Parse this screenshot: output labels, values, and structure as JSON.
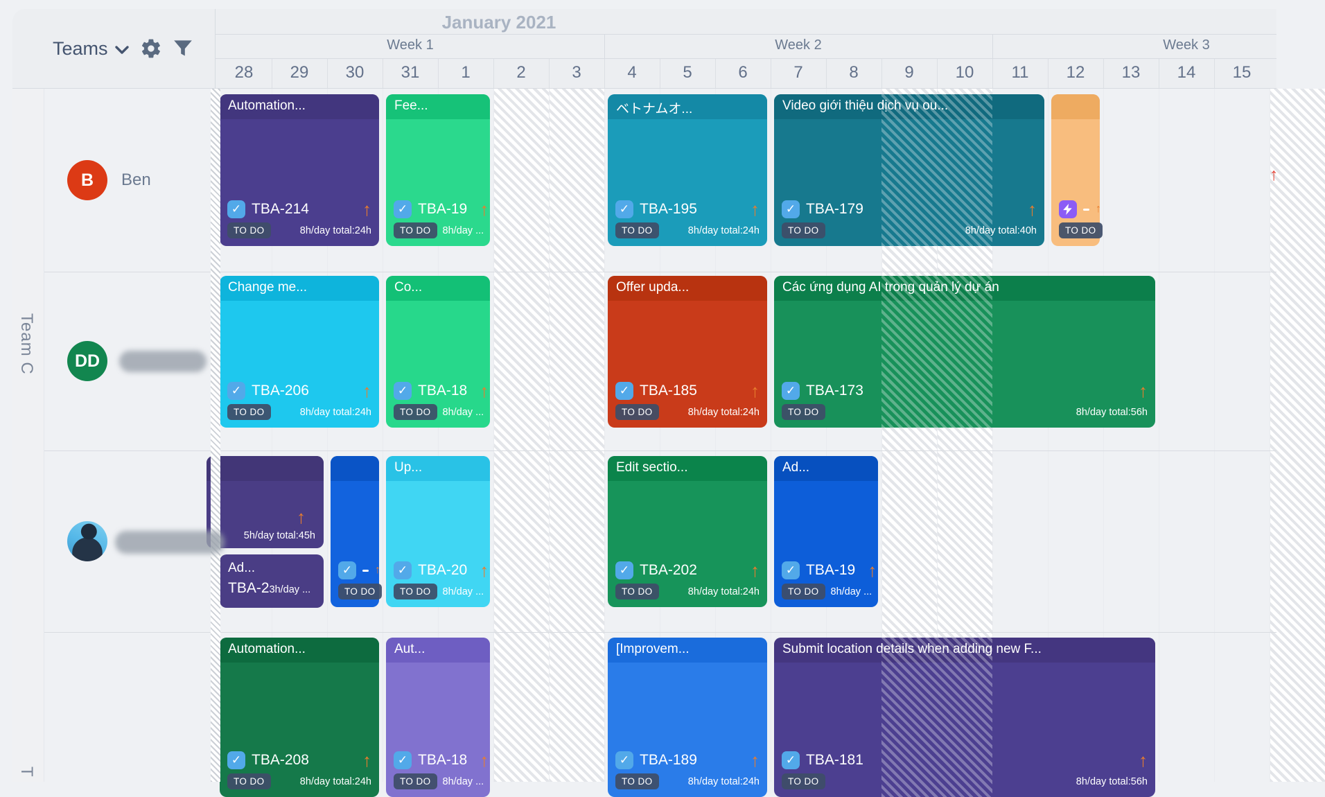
{
  "toolbar": {
    "teams_label": "Teams"
  },
  "header": {
    "month": "January 2021",
    "weeks": [
      {
        "label": "Week 1",
        "startCol": 0,
        "span": 7
      },
      {
        "label": "Week 2",
        "startCol": 7,
        "span": 7
      },
      {
        "label": "Week 3",
        "startCol": 14,
        "span": 7
      }
    ],
    "days": [
      "28",
      "29",
      "30",
      "31",
      "1",
      "2",
      "3",
      "4",
      "5",
      "6",
      "7",
      "8",
      "9",
      "10",
      "11",
      "12",
      "13",
      "14",
      "15"
    ],
    "weekend_cols": [
      5,
      6,
      12,
      13,
      19
    ]
  },
  "sidebar": {
    "team_label": "Team C",
    "next_team_hint": "T",
    "members": [
      {
        "avatar_initials": "B",
        "avatar_color": "#dc3a15",
        "name": "Ben"
      },
      {
        "avatar_initials": "DD",
        "avatar_color": "#12864f",
        "name_blurred": true
      },
      {
        "avatar_photo": true,
        "name_blurred": true
      },
      {}
    ]
  },
  "colors": {
    "checkbox": "#52a9e9",
    "priority_arrow": "#e87d2e",
    "status_badge_bg": "#4b5b76",
    "edge_arrow_red": "#e5483c"
  },
  "status_label": "TO DO",
  "cards": [
    {
      "row": 0,
      "col": 0,
      "span": 3,
      "title": "Automation...",
      "body": "#4b3e8e",
      "head": "#42367e",
      "id": "TBA-214",
      "arrow": true,
      "badge": "TO DO",
      "hours": "8h/day total:24h"
    },
    {
      "row": 0,
      "col": 3,
      "span": 2,
      "title": "Fee...",
      "body": "#2bd98d",
      "head": "#16c278",
      "id": "TBA-19",
      "arrow": true,
      "badge": "TO DO",
      "hours": "8h/day ...",
      "hours_inline": true
    },
    {
      "row": 0,
      "col": 7,
      "span": 3,
      "title": "ベトナムオ...",
      "body": "#1b9cba",
      "head": "#1489a6",
      "id": "TBA-195",
      "arrow": true,
      "badge": "TO DO",
      "hours": "8h/day total:24h"
    },
    {
      "row": 0,
      "col": 10,
      "span": 5,
      "title": "Video giới thiệu dịch vụ ou...",
      "body": "#17798e",
      "head": "#106a7e",
      "id": "TBA-179",
      "arrow": true,
      "badge": "TO DO",
      "hours": "8h/day total:40h",
      "weekend_overlay": true
    },
    {
      "row": 0,
      "col": 15,
      "span": 1,
      "title": "",
      "body": "#f8bd7e",
      "head": "#eeab61",
      "badge": "TO DO",
      "variant": "mini-bolt"
    },
    {
      "row": 1,
      "col": 0,
      "span": 3,
      "title": "Change me...",
      "body": "#1ec8ee",
      "head": "#0eb4dc",
      "id": "TBA-206",
      "arrow": true,
      "badge": "TO DO",
      "hours": "8h/day total:24h"
    },
    {
      "row": 1,
      "col": 3,
      "span": 2,
      "title": "Co...",
      "body": "#27d88b",
      "head": "#13c076",
      "id": "TBA-18",
      "arrow": true,
      "badge": "TO DO",
      "hours": "8h/day ...",
      "hours_inline": true
    },
    {
      "row": 1,
      "col": 7,
      "span": 3,
      "title": "Offer upda...",
      "body": "#c93b1a",
      "head": "#b83310",
      "id": "TBA-185",
      "arrow": true,
      "badge": "TO DO",
      "hours": "8h/day total:24h"
    },
    {
      "row": 1,
      "col": 10,
      "span": 7,
      "title": "Các ứng dụng AI trong quản lý dự án",
      "body": "#18915a",
      "head": "#0c7f4b",
      "id": "TBA-173",
      "arrow": true,
      "badge": "TO DO",
      "hours": "8h/day total:56h",
      "weekend_overlay": true
    },
    {
      "row": 2,
      "col": 0,
      "span": 2,
      "title": "",
      "body": "#4a3d85",
      "head": "#423677",
      "arrow": true,
      "hours": "5h/day total:45h",
      "variant": "clipped-top"
    },
    {
      "row": 2,
      "col": 0,
      "span": 2,
      "title": "Ad...",
      "body": "#4a3d85",
      "head": "#4a3d85",
      "id": "TBA-2",
      "hours": "3h/day ...",
      "variant": "stub"
    },
    {
      "row": 2,
      "col": 2,
      "span": 1,
      "title": "",
      "body": "#1263de",
      "head": "#0a54c6",
      "badge": "TO DO",
      "variant": "mini-check"
    },
    {
      "row": 2,
      "col": 3,
      "span": 2,
      "title": "Up...",
      "body": "#40d6f3",
      "head": "#29c2e6",
      "id": "TBA-20",
      "arrow": true,
      "badge": "TO DO",
      "hours": "8h/day ...",
      "hours_inline": true
    },
    {
      "row": 2,
      "col": 7,
      "span": 3,
      "title": "Edit sectio...",
      "body": "#17945a",
      "head": "#0b844b",
      "id": "TBA-202",
      "arrow": true,
      "badge": "TO DO",
      "hours": "8h/day total:24h"
    },
    {
      "row": 2,
      "col": 10,
      "span": 2,
      "title": "Ad...",
      "body": "#0d5ed9",
      "head": "#0750bf",
      "id": "TBA-19",
      "arrow": true,
      "badge": "TO DO",
      "hours": "8h/day ...",
      "hours_inline": true
    },
    {
      "row": 3,
      "col": 0,
      "span": 3,
      "title": "Automation...",
      "body": "#15794a",
      "head": "#0d6b3f",
      "id": "TBA-208",
      "arrow": true,
      "badge": "TO DO",
      "hours": "8h/day total:24h"
    },
    {
      "row": 3,
      "col": 3,
      "span": 2,
      "title": "Aut...",
      "body": "#8172cf",
      "head": "#6e5ec2",
      "id": "TBA-18",
      "arrow": true,
      "badge": "TO DO",
      "hours": "8h/day ...",
      "hours_inline": true
    },
    {
      "row": 3,
      "col": 7,
      "span": 3,
      "title": "[Improvem...",
      "body": "#2a7ce9",
      "head": "#1a6cdc",
      "id": "TBA-189",
      "arrow": true,
      "badge": "TO DO",
      "hours": "8h/day total:24h"
    },
    {
      "row": 3,
      "col": 10,
      "span": 7,
      "title": "Submit location details when adding new F...",
      "body": "#4c3f90",
      "head": "#443680",
      "id": "TBA-181",
      "arrow": true,
      "badge": "TO DO",
      "hours": "8h/day total:56h",
      "weekend_overlay": true
    }
  ]
}
